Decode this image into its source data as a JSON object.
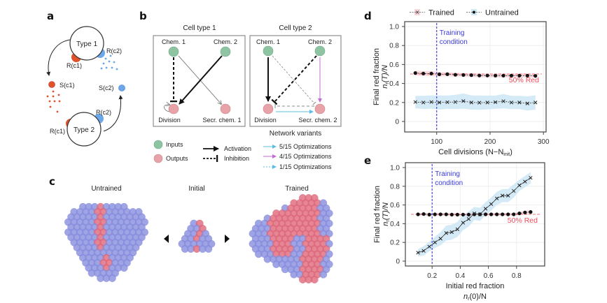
{
  "panel_labels": {
    "a": "a",
    "b": "b",
    "c": "c",
    "d": "d",
    "e": "e"
  },
  "panel_a": {
    "type1_label": "Type 1",
    "type2_label": "Type 2",
    "r_c1": "R(c1)",
    "r_c2": "R(c2)",
    "s_c1": "S(c1)",
    "s_c2": "S(c2)",
    "colors": {
      "c1": "#e0522b",
      "c2": "#6aa8ea"
    }
  },
  "panel_b": {
    "cell_type1_title": "Cell type 1",
    "cell_type2_title": "Cell type 2",
    "chem1": "Chem. 1",
    "chem2": "Chem. 2",
    "division": "Division",
    "secr1": "Secr. chem. 1",
    "secr2": "Secr. chem. 2",
    "network_variants_title": "Network variants",
    "legend": {
      "inputs": "Inputs",
      "outputs": "Outputs",
      "activation": "Activation",
      "inhibition": "Inhibition",
      "variants": [
        {
          "label": "5/15 Optimizations",
          "color": "#5bbde6",
          "style": "solid"
        },
        {
          "label": "4/15 Optimizations",
          "color": "#c46ad6",
          "style": "solid"
        },
        {
          "label": "1/15 Optimizations",
          "color": "#5bbde6",
          "style": "dashed"
        }
      ]
    },
    "colors": {
      "input": "#8fc4a3",
      "output": "#e8a3a8"
    }
  },
  "panel_c": {
    "untrained_title": "Untrained",
    "initial_title": "Initial",
    "trained_title": "Trained",
    "colors": {
      "blue": "#8a90df",
      "red": "#e06a7c"
    }
  },
  "chart_data": [
    {
      "id": "d",
      "type": "line",
      "xlabel": "Cell divisions (N−N",
      "xlabel_sub": "init",
      "xlabel_end": ")",
      "ylabel_line1": "Final red fraction",
      "ylabel_line2": "n",
      "ylabel_line2_sub": "r",
      "ylabel_line2_end": "(T)/N",
      "xlim": [
        40,
        305
      ],
      "ylim": [
        -0.05,
        1.03
      ],
      "xticks": [
        100,
        200,
        300
      ],
      "yticks": [
        0,
        0.2,
        0.4,
        0.6,
        0.8,
        1.0
      ],
      "ytick_labels": [
        "0",
        "0.2",
        "0.4",
        "0.6",
        "0.8",
        "1.0"
      ],
      "grid": true,
      "legend": {
        "position": "top",
        "entries": [
          "Trained",
          "Untrained"
        ]
      },
      "reference_line": {
        "y": 0.5,
        "label": "50% Red",
        "color": "#f04b5b"
      },
      "training_condition": {
        "x": 100,
        "label_line1": "Training",
        "label_line2": "condition",
        "color": "#3a3ae0"
      },
      "x": [
        60,
        75,
        90,
        105,
        120,
        135,
        150,
        165,
        180,
        195,
        210,
        225,
        240,
        255,
        270,
        285
      ],
      "series": [
        {
          "name": "Trained",
          "marker": "dot",
          "band_color": "#f7d6dc",
          "values": [
            0.51,
            0.505,
            0.505,
            0.497,
            0.498,
            0.492,
            0.49,
            0.488,
            0.484,
            0.484,
            0.483,
            0.483,
            0.483,
            0.483,
            0.483,
            0.48
          ],
          "band": [
            0.025,
            0.025,
            0.025,
            0.022,
            0.02,
            0.02,
            0.018,
            0.018,
            0.018,
            0.018,
            0.018,
            0.018,
            0.018,
            0.018,
            0.018,
            0.018
          ]
        },
        {
          "name": "Untrained",
          "marker": "x",
          "band_color": "#cfe8f5",
          "values": [
            0.205,
            0.2,
            0.205,
            0.2,
            0.203,
            0.205,
            0.215,
            0.2,
            0.198,
            0.2,
            0.203,
            0.213,
            0.2,
            0.2,
            0.19,
            0.2
          ],
          "band": [
            0.065,
            0.07,
            0.07,
            0.075,
            0.07,
            0.075,
            0.08,
            0.075,
            0.075,
            0.072,
            0.07,
            0.075,
            0.07,
            0.07,
            0.075,
            0.075
          ]
        }
      ]
    },
    {
      "id": "e",
      "type": "line",
      "xlabel": "Initial red fraction",
      "xlabel2": "n",
      "xlabel2_sub": "r",
      "xlabel2_end": "(0)/N",
      "ylabel_line1": "Final red fraction",
      "ylabel_line2": "n",
      "ylabel_line2_sub": "r",
      "ylabel_line2_end": "(T)/N",
      "xlim": [
        0.01,
        1.0
      ],
      "ylim": [
        -0.05,
        1.03
      ],
      "xticks": [
        0.2,
        0.4,
        0.6,
        0.8
      ],
      "xtick_labels": [
        "0.2",
        "0.4",
        "0.6",
        "0.8"
      ],
      "yticks": [
        0,
        0.2,
        0.4,
        0.6,
        0.8,
        1.0
      ],
      "ytick_labels": [
        "0",
        "0.2",
        "0.4",
        "0.6",
        "0.8",
        "1.0"
      ],
      "grid": true,
      "reference_line": {
        "y": 0.5,
        "label": "50% Red",
        "color": "#f04b5b"
      },
      "training_condition": {
        "x": 0.2,
        "label_line1": "Training",
        "label_line2": "condition",
        "color": "#3a3ae0"
      },
      "x": [
        0.1,
        0.14,
        0.18,
        0.22,
        0.26,
        0.3,
        0.34,
        0.38,
        0.42,
        0.46,
        0.5,
        0.54,
        0.58,
        0.62,
        0.66,
        0.7,
        0.74,
        0.78,
        0.82,
        0.86,
        0.9
      ],
      "series": [
        {
          "name": "Trained",
          "marker": "dot",
          "band_color": "#f7d6dc",
          "values": [
            0.5,
            0.503,
            0.497,
            0.5,
            0.5,
            0.5,
            0.497,
            0.497,
            0.497,
            0.497,
            0.5,
            0.5,
            0.5,
            0.5,
            0.5,
            0.5,
            0.5,
            0.5,
            0.51,
            0.52,
            0.525
          ],
          "band": [
            0.015,
            0.015,
            0.015,
            0.015,
            0.015,
            0.015,
            0.015,
            0.015,
            0.015,
            0.015,
            0.015,
            0.015,
            0.015,
            0.015,
            0.015,
            0.015,
            0.015,
            0.015,
            0.018,
            0.02,
            0.02
          ]
        },
        {
          "name": "Untrained",
          "marker": "x",
          "band_color": "#cfe8f5",
          "values": [
            0.09,
            0.11,
            0.155,
            0.2,
            0.24,
            0.3,
            0.31,
            0.34,
            0.41,
            0.45,
            0.51,
            0.5,
            0.56,
            0.61,
            0.67,
            0.7,
            0.7,
            0.75,
            0.81,
            0.85,
            0.89
          ],
          "band": [
            0.04,
            0.05,
            0.05,
            0.06,
            0.07,
            0.08,
            0.08,
            0.08,
            0.08,
            0.08,
            0.07,
            0.07,
            0.07,
            0.07,
            0.07,
            0.07,
            0.07,
            0.07,
            0.06,
            0.06,
            0.06
          ]
        }
      ]
    }
  ]
}
